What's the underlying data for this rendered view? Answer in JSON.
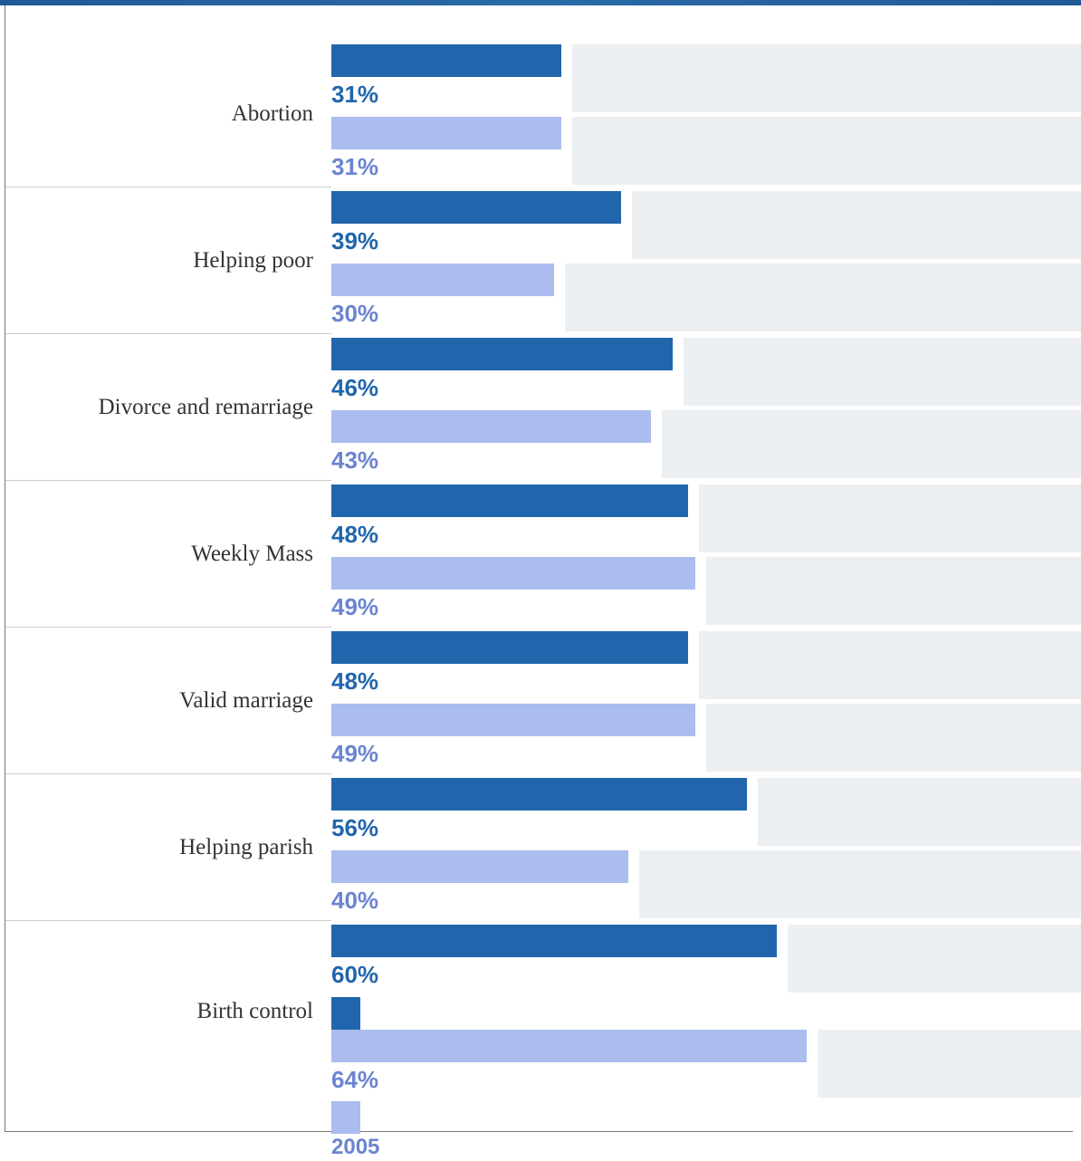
{
  "colors": {
    "series_dark": "#2166ac",
    "series_light": "#abbcef",
    "label_dark": "#2166ac",
    "label_light": "#6b84d0",
    "track": "#edf0f2",
    "topbar": "#1f5a96"
  },
  "chart_data": {
    "type": "bar",
    "orientation": "horizontal",
    "categories": [
      "Abortion",
      "Helping poor",
      "Divorce and remarriage",
      "Weekly Mass",
      "Valid marriage",
      "Helping parish",
      "Birth control"
    ],
    "series": [
      {
        "name": "",
        "values": [
          31,
          39,
          46,
          48,
          48,
          56,
          60
        ],
        "labels": [
          "31%",
          "39%",
          "46%",
          "48%",
          "48%",
          "56%",
          "60%"
        ]
      },
      {
        "name": "2005",
        "values": [
          31,
          30,
          43,
          49,
          49,
          40,
          64
        ],
        "labels": [
          "31%",
          "30%",
          "43%",
          "49%",
          "49%",
          "40%",
          "64%"
        ]
      }
    ],
    "xlim": [
      0,
      100
    ],
    "grid": false,
    "legend": "bottom-left"
  }
}
